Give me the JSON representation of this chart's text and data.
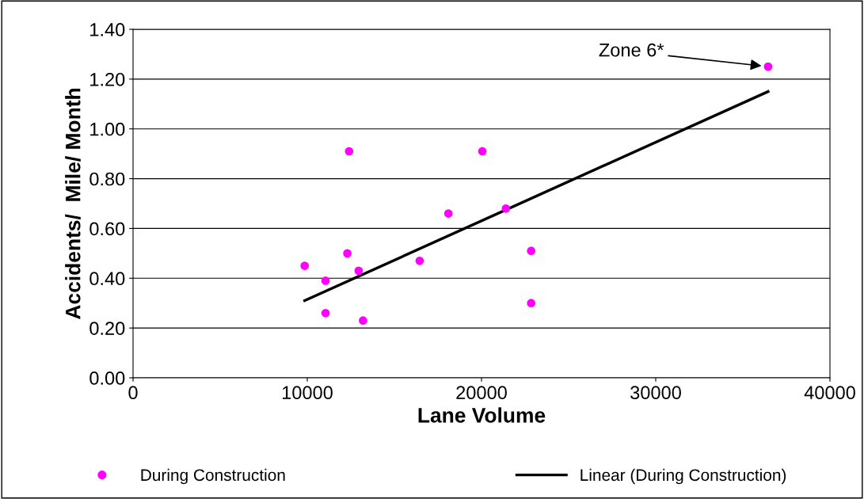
{
  "chart_data": {
    "type": "scatter",
    "xlabel": "Lane Volume",
    "ylabel": "Accidents/  Mile/ Month",
    "xlim": [
      0,
      40000
    ],
    "xticks": [
      0,
      10000,
      20000,
      30000,
      40000
    ],
    "ylim": [
      0,
      1.4
    ],
    "yticks": [
      {
        "value": 0,
        "label": "0.00"
      },
      {
        "value": 0.2,
        "label": "0.20"
      },
      {
        "value": 0.4,
        "label": "0.40"
      },
      {
        "value": 0.6,
        "label": "0.60"
      },
      {
        "value": 0.8,
        "label": "0.80"
      },
      {
        "value": 1.0,
        "label": "1.00"
      },
      {
        "value": 1.2,
        "label": "1.20"
      },
      {
        "value": 1.4,
        "label": "1.40"
      }
    ],
    "grid": "y",
    "legend": "bottom",
    "marker": "circle",
    "series": [
      {
        "name": "During Construction",
        "color": "#ff00ff",
        "x": [
          12400,
          20050,
          36450,
          18100,
          21400,
          9850,
          12300,
          11050,
          12950,
          16450,
          22850,
          11050,
          13200,
          22850
        ],
        "values": [
          0.91,
          0.91,
          1.25,
          0.66,
          0.68,
          0.45,
          0.5,
          0.39,
          0.43,
          0.47,
          0.51,
          0.26,
          0.23,
          0.3
        ]
      },
      {
        "name": "Linear (During Construction)",
        "type": "line",
        "marker": "none",
        "color": "#000000",
        "x": [
          9850,
          36450
        ],
        "values": [
          0.31,
          1.15
        ]
      }
    ],
    "annotations": [
      "Zone 6*"
    ]
  }
}
